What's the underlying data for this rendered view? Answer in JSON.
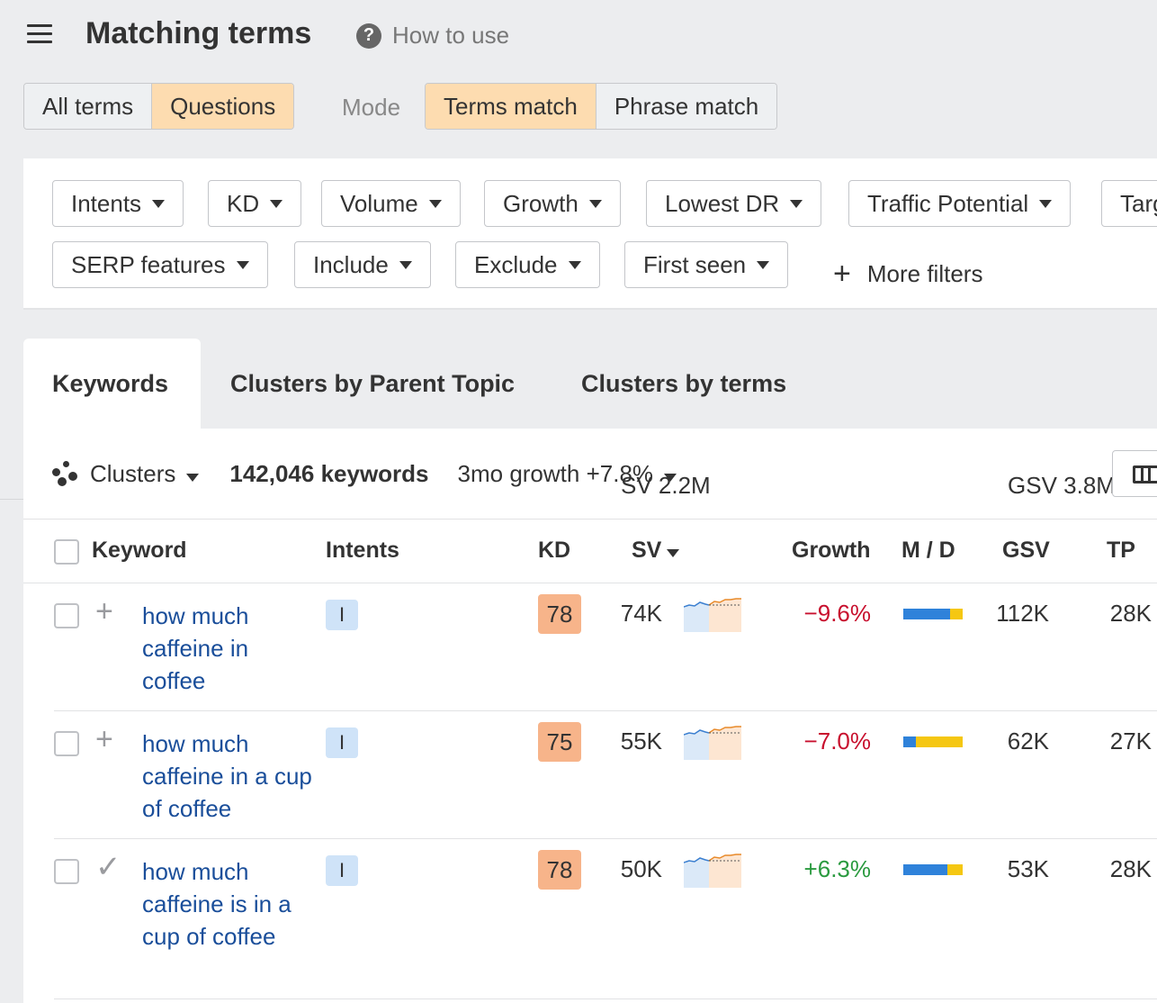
{
  "header": {
    "title": "Matching terms",
    "help_label": "How to use"
  },
  "term_type": {
    "options": [
      "All terms",
      "Questions"
    ],
    "selected": "Questions"
  },
  "mode": {
    "label": "Mode",
    "options": [
      "Terms match",
      "Phrase match"
    ],
    "selected": "Terms match"
  },
  "filters": {
    "row1": [
      "Intents",
      "KD",
      "Volume",
      "Growth",
      "Lowest DR",
      "Traffic Potential",
      "Target"
    ],
    "row2": [
      "SERP features",
      "Include",
      "Exclude",
      "First seen"
    ],
    "more": "More filters"
  },
  "tabs": [
    "Keywords",
    "Clusters by Parent Topic",
    "Clusters by terms"
  ],
  "summary": {
    "clusters": "Clusters",
    "keyword_count": "142,046 keywords",
    "sv": "SV 2.2M",
    "gsv": "GSV 3.8M",
    "growth": "3mo growth +7.8%"
  },
  "table": {
    "columns": [
      "Keyword",
      "Intents",
      "KD",
      "SV",
      "Growth",
      "M / D",
      "GSV",
      "TP"
    ],
    "rows": [
      {
        "keyword": "how much caffeine in coffee",
        "intent": "I",
        "kd": "78",
        "sv": "74K",
        "growth": "−9.6%",
        "growth_dir": "neg",
        "mobile_share": 0.79,
        "gsv": "112K",
        "tp": "28K",
        "action_icon": "plus-icon"
      },
      {
        "keyword": "how much caffeine in a cup of coffee",
        "intent": "I",
        "kd": "75",
        "sv": "55K",
        "growth": "−7.0%",
        "growth_dir": "neg",
        "mobile_share": 0.21,
        "gsv": "62K",
        "tp": "27K",
        "action_icon": "plus-icon"
      },
      {
        "keyword": "how much caffeine is in a cup of coffee",
        "intent": "I",
        "kd": "78",
        "sv": "50K",
        "growth": "+6.3%",
        "growth_dir": "pos",
        "mobile_share": 0.74,
        "gsv": "53K",
        "tp": "28K",
        "action_icon": "check-icon"
      }
    ]
  },
  "colors": {
    "active_segment": "#fddcb0",
    "kd_badge": "#f7b48a",
    "intent_badge": "#cfe3f8",
    "link": "#1a4e9a",
    "negative": "#c8102e",
    "positive": "#2a9a3f",
    "mobile": "#2f82da",
    "desktop": "#f5c712"
  }
}
